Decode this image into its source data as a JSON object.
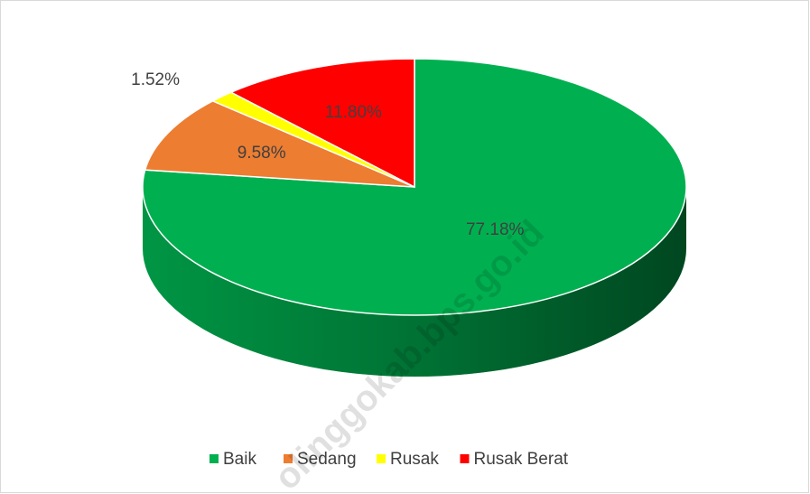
{
  "chart_data": {
    "type": "pie",
    "categories": [
      "Baik",
      "Sedang",
      "Rusak",
      "Rusak Berat"
    ],
    "values": [
      77.18,
      9.58,
      1.52,
      11.8
    ],
    "value_labels": [
      "77.18%",
      "9.58%",
      "1.52%",
      "11.80%"
    ],
    "colors": [
      "#00b050",
      "#ed7d31",
      "#ffff00",
      "#ff0000"
    ],
    "legend": "bottom",
    "watermark": "olinggokab.bps.go.id"
  }
}
